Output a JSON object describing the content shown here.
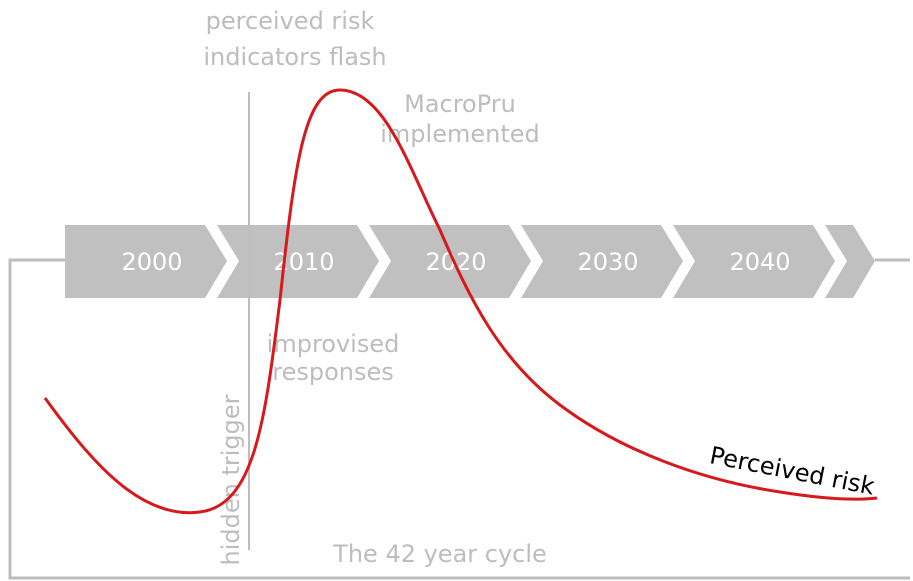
{
  "timeline": {
    "labels": [
      "2000",
      "2010",
      "2020",
      "2030",
      "2040"
    ]
  },
  "annotations": {
    "flash": [
      "perceived risk",
      "indicators flash"
    ],
    "macropru": [
      "MacroPru",
      "implemented"
    ],
    "responses": [
      "improvised",
      "responses"
    ],
    "trigger": "hidden trigger",
    "cycle": "The 42 year cycle"
  },
  "curve": {
    "label": "Perceived risk"
  }
}
